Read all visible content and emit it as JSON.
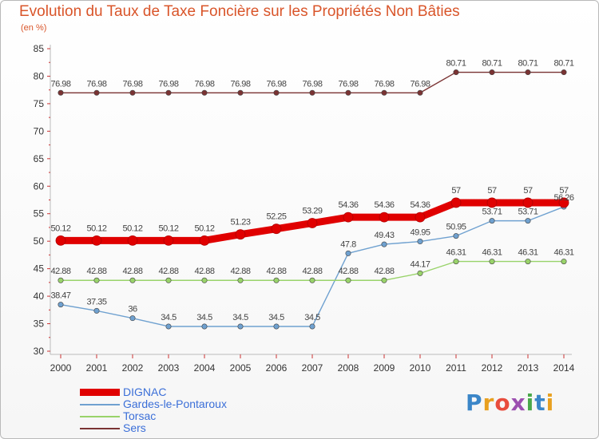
{
  "chart_data": {
    "type": "line",
    "title": "Evolution du Taux de Taxe Foncière sur les Propriétés Non Bâties",
    "subtitle": "(en %)",
    "x": [
      "2000",
      "2001",
      "2002",
      "2003",
      "2004",
      "2005",
      "2006",
      "2007",
      "2008",
      "2009",
      "2010",
      "2011",
      "2012",
      "2013",
      "2014"
    ],
    "ylim": [
      30,
      85
    ],
    "yticks": [
      "30",
      "35",
      "40",
      "45",
      "50",
      "55",
      "60",
      "65",
      "70",
      "75",
      "80",
      "85"
    ],
    "grid": false,
    "legend_position": "bottom-left",
    "series": [
      {
        "name": "DIGNAC",
        "color": "#e00000",
        "emphasis": true,
        "values": [
          50.12,
          50.12,
          50.12,
          50.12,
          50.12,
          51.23,
          52.25,
          53.29,
          54.36,
          54.36,
          54.36,
          57,
          57,
          57,
          57
        ],
        "labels": [
          "50.12",
          "50.12",
          "50.12",
          "50.12",
          "50.12",
          "51.23",
          "52.25",
          "53.29",
          "54.36",
          "54.36",
          "54.36",
          "57",
          "57",
          "57",
          "57"
        ]
      },
      {
        "name": "Gardes-le-Pontaroux",
        "color": "#6fa1d0",
        "values": [
          38.47,
          37.35,
          36,
          34.5,
          34.5,
          34.5,
          34.5,
          34.5,
          47.8,
          49.43,
          49.95,
          50.95,
          53.71,
          53.71,
          56.26
        ],
        "labels": [
          "38.47",
          "37.35",
          "36",
          "34.5",
          "34.5",
          "34.5",
          "34.5",
          "34.5",
          "47.8",
          "49.43",
          "49.95",
          "50.95",
          "53.71",
          "53.71",
          "56.26"
        ]
      },
      {
        "name": "Torsac",
        "color": "#99d36a",
        "values": [
          42.88,
          42.88,
          42.88,
          42.88,
          42.88,
          42.88,
          42.88,
          42.88,
          42.88,
          42.88,
          44.17,
          46.31,
          46.31,
          46.31,
          46.31
        ],
        "labels": [
          "42.88",
          "42.88",
          "42.88",
          "42.88",
          "42.88",
          "42.88",
          "42.88",
          "42.88",
          "42.88",
          "42.88",
          "44.17",
          "46.31",
          "46.31",
          "46.31",
          "46.31"
        ]
      },
      {
        "name": "Sers",
        "color": "#7a3333",
        "values": [
          76.98,
          76.98,
          76.98,
          76.98,
          76.98,
          76.98,
          76.98,
          76.98,
          76.98,
          76.98,
          76.98,
          80.71,
          80.71,
          80.71,
          80.71
        ],
        "labels": [
          "76.98",
          "76.98",
          "76.98",
          "76.98",
          "76.98",
          "76.98",
          "76.98",
          "76.98",
          "76.98",
          "76.98",
          "76.98",
          "80.71",
          "80.71",
          "80.71",
          "80.71"
        ]
      }
    ]
  },
  "logo": {
    "letters": [
      "P",
      "r",
      "o",
      "x",
      "i",
      "t",
      "i"
    ],
    "colors": [
      "#3b86c8",
      "#e8a020",
      "#e84c3c",
      "#9c4fb0",
      "#4aa84a",
      "#3b86c8",
      "#e8a020"
    ]
  }
}
